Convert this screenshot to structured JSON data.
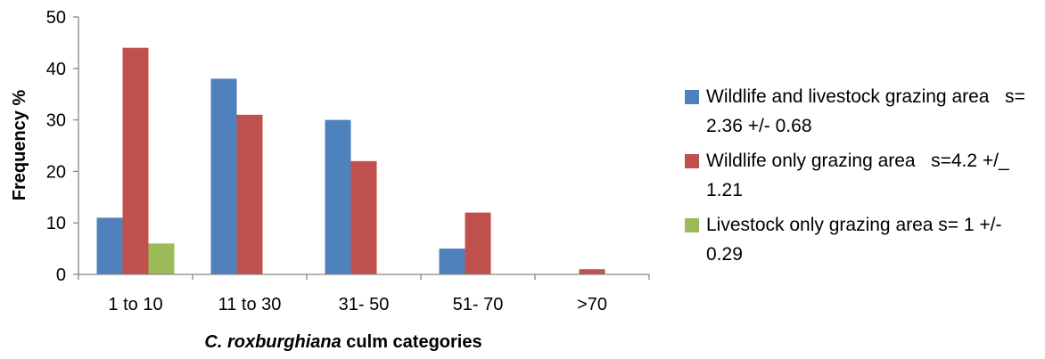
{
  "chart_data": {
    "type": "bar",
    "title": "",
    "xlabel_italic": "C. roxburghiana",
    "xlabel_rest": " culm categories",
    "ylabel": "Frequency %",
    "ylim": [
      0,
      50
    ],
    "yticks": [
      "0",
      "10",
      "20",
      "30",
      "40",
      "50"
    ],
    "categories": [
      "1 to 10",
      "11 to 30",
      "31- 50",
      "51- 70",
      ">70"
    ],
    "series": [
      {
        "name": "Wildlife and livestock grazing area   s= 2.36 +/- 0.68",
        "color": "#4f81bd",
        "values": [
          11,
          38,
          30,
          5,
          0
        ]
      },
      {
        "name": "Wildlife only grazing area   s=4.2 +/_ 1.21",
        "color": "#c0504d",
        "values": [
          44,
          31,
          22,
          12,
          1
        ]
      },
      {
        "name": "Livestock only grazing area s= 1 +/- 0.29",
        "color": "#9bbb59",
        "values": [
          6,
          0,
          0,
          0,
          0
        ]
      }
    ],
    "grid": false,
    "legend_position": "right"
  },
  "legend": [
    {
      "label": "Wildlife and livestock grazing area   s= 2.36 +/- 0.68"
    },
    {
      "label": "Wildlife only grazing area   s=4.2 +/_ 1.21"
    },
    {
      "label": "Livestock only grazing area s= 1 +/- 0.29"
    }
  ]
}
